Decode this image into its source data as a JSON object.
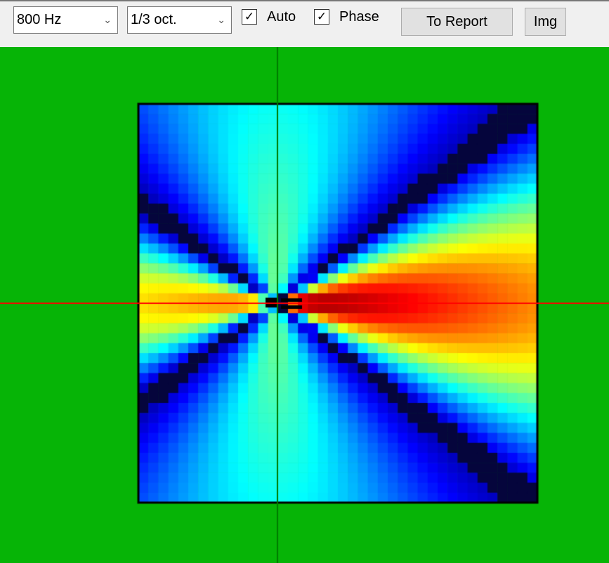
{
  "toolbar": {
    "frequency": "800 Hz",
    "bandwidth": "1/3 oct.",
    "auto_label": "Auto",
    "auto_checked": true,
    "phase_label": "Phase",
    "phase_checked": true,
    "report_label": "To Report",
    "img_label": "Img"
  },
  "plot": {
    "background": "#06b406",
    "colormap": "jet",
    "crosshair_vertical": "#007a00",
    "crosshair_horizontal": "#ff0000"
  }
}
